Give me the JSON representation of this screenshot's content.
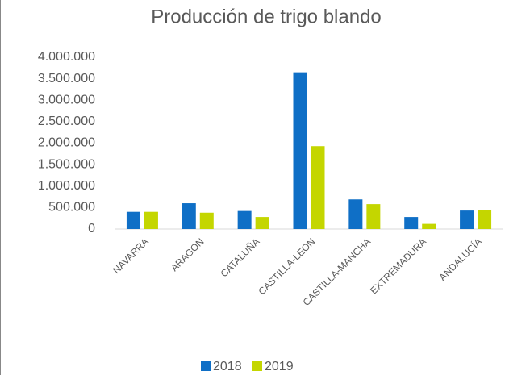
{
  "chart_data": {
    "type": "bar",
    "title": "Producción de trigo blando",
    "categories": [
      "NAVARRA",
      "ARAGON",
      "CATALUÑA",
      "CASTILLA-LEON",
      "CASTILLA-MANCHA",
      "EXTREMADURA",
      "ANDALUCÍA"
    ],
    "series": [
      {
        "name": "2018",
        "color": "#0f6fc6",
        "values": [
          400000,
          600000,
          420000,
          3650000,
          690000,
          280000,
          430000
        ]
      },
      {
        "name": "2019",
        "color": "#c4d600",
        "values": [
          400000,
          380000,
          280000,
          1930000,
          580000,
          120000,
          440000
        ]
      }
    ],
    "ylim": [
      0,
      4000000
    ],
    "yticks": [
      0,
      {
        "value": 500000,
        "label": "500.000"
      },
      {
        "value": 1000000,
        "label": "1.000.000"
      },
      {
        "value": 1500000,
        "label": "1.500.000"
      },
      {
        "value": 2000000,
        "label": "2.000.000"
      },
      {
        "value": 2500000,
        "label": "2.500.000"
      },
      {
        "value": 3000000,
        "label": "3.000.000"
      },
      {
        "value": 3500000,
        "label": "3.500.000"
      },
      {
        "value": 4000000,
        "label": "4.000.000"
      }
    ],
    "grid": false,
    "legend": "bottom"
  }
}
